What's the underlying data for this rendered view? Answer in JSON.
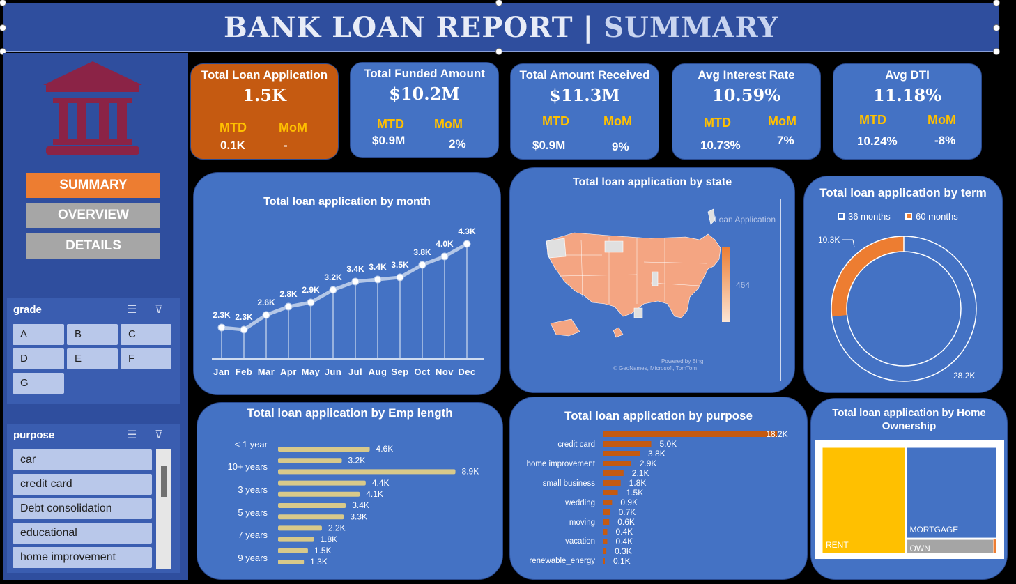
{
  "header": {
    "title_main": "BANK LOAN REPORT",
    "separator": "|",
    "title_sub": "SUMMARY"
  },
  "nav": {
    "summary": "SUMMARY",
    "overview": "OVERVIEW",
    "details": "DETAILS"
  },
  "colors": {
    "header_bg": "#2f4e9e",
    "card_bg": "#4472c4",
    "accent_orange": "#c55a11",
    "nav_active": "#ed7d31",
    "nav_inactive": "#a6a6a6",
    "kpi_label": "#ffc000",
    "bank_icon": "#8b2346"
  },
  "slicers": {
    "grade": {
      "title": "grade",
      "items": [
        "A",
        "B",
        "C",
        "D",
        "E",
        "F",
        "G"
      ]
    },
    "purpose": {
      "title": "purpose",
      "items": [
        "car",
        "credit card",
        "Debt consolidation",
        "educational",
        "home improvement"
      ]
    }
  },
  "kpis": [
    {
      "title": "Total Loan Application",
      "value": "1.5K",
      "mtd_label": "MTD",
      "mtd": "0.1K",
      "mom_label": "MoM",
      "mom": "-"
    },
    {
      "title": "Total Funded Amount",
      "value": "$10.2M",
      "mtd_label": "MTD",
      "mtd": "$0.9M",
      "mom_label": "MoM",
      "mom": "2%"
    },
    {
      "title": "Total Amount Received",
      "value": "$11.3M",
      "mtd_label": "MTD",
      "mtd": "$0.9M",
      "mom_label": "MoM",
      "mom": "9%"
    },
    {
      "title": "Avg Interest Rate",
      "value": "10.59%",
      "mtd_label": "MTD",
      "mtd": "10.73%",
      "mom_label": "MoM",
      "mom": "7%"
    },
    {
      "title": "Avg DTI",
      "value": "11.18%",
      "mtd_label": "MTD",
      "mtd": "10.24%",
      "mom_label": "MoM",
      "mom": "-8%"
    }
  ],
  "chart_data": [
    {
      "type": "line",
      "title": "Total loan application by month",
      "categories": [
        "Jan",
        "Feb",
        "Mar",
        "Apr",
        "May",
        "Jun",
        "Jul",
        "Aug",
        "Sep",
        "Oct",
        "Nov",
        "Dec"
      ],
      "values": [
        2300,
        2250,
        2600,
        2800,
        2900,
        3200,
        3400,
        3450,
        3500,
        3800,
        4000,
        4300
      ],
      "labels": [
        "2.3K",
        "2.3K",
        "2.6K",
        "2.8K",
        "2.9K",
        "3.2K",
        "3.4K",
        "3.4K",
        "3.5K",
        "3.8K",
        "4.0K",
        "4.3K"
      ]
    },
    {
      "type": "map",
      "title": "Total loan application by state",
      "legend_title": "Loan Application",
      "legend_value": "464",
      "credits_line1": "Powered by Bing",
      "credits_line2": "© GeoNames, Microsoft, TomTom"
    },
    {
      "type": "pie",
      "title": "Total loan application by term",
      "series": [
        {
          "name": "36 months",
          "value": 28.2,
          "label": "28.2K",
          "color": "#4472c4"
        },
        {
          "name": "60 months",
          "value": 10.3,
          "label": "10.3K",
          "color": "#ed7d31"
        }
      ],
      "legend_position": "top"
    },
    {
      "type": "bar",
      "title": "Total loan application by Emp length",
      "category_labels": [
        "< 1 year",
        "10+ years",
        "3 years",
        "5 years",
        "7 years",
        "9 years"
      ],
      "values": [
        4.6,
        3.2,
        8.9,
        4.4,
        4.1,
        3.4,
        3.3,
        2.2,
        1.8,
        1.5,
        1.3
      ],
      "labels": [
        "4.6K",
        "3.2K",
        "8.9K",
        "4.4K",
        "4.1K",
        "3.4K",
        "3.3K",
        "2.2K",
        "1.8K",
        "1.5K",
        "1.3K"
      ]
    },
    {
      "type": "bar",
      "title": "Total loan application by purpose",
      "category_labels": [
        "credit card",
        "home improvement",
        "small business",
        "wedding",
        "moving",
        "vacation",
        "renewable_energy"
      ],
      "values": [
        18.2,
        5.0,
        3.8,
        2.9,
        2.1,
        1.8,
        1.5,
        0.9,
        0.7,
        0.6,
        0.4,
        0.4,
        0.3,
        0.1
      ],
      "labels": [
        "18.2K",
        "5.0K",
        "3.8K",
        "2.9K",
        "2.1K",
        "1.8K",
        "1.5K",
        "0.9K",
        "0.7K",
        "0.6K",
        "0.4K",
        "0.4K",
        "0.3K",
        "0.1K"
      ]
    },
    {
      "type": "treemap",
      "title": "Total loan application by Home Ownership",
      "items": [
        {
          "name": "RENT",
          "value": 18.4,
          "color": "#ffc000"
        },
        {
          "name": "MORTGAGE",
          "value": 17.2,
          "color": "#4472c4"
        },
        {
          "name": "OWN",
          "value": 2.8,
          "color": "#a5a5a5"
        },
        {
          "name": "",
          "value": 0.1,
          "color": "#ed7d31"
        }
      ]
    }
  ]
}
